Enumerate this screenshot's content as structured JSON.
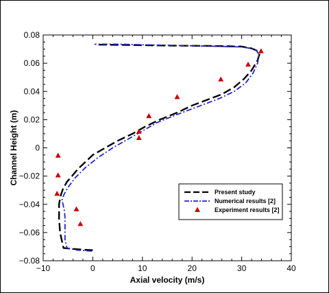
{
  "chart_data": {
    "type": "line",
    "title": "",
    "xlabel": "Axial velocity (m/s)",
    "ylabel": "Channel Height (m)",
    "xlim": [
      -10,
      40
    ],
    "ylim": [
      -0.08,
      0.08
    ],
    "xticks": [
      -10,
      0,
      10,
      20,
      30,
      40
    ],
    "yticks": [
      -0.08,
      -0.06,
      -0.04,
      -0.02,
      0,
      0.02,
      0.04,
      0.06,
      0.08
    ],
    "xtick_labels": [
      "−10",
      "0",
      "10",
      "20",
      "30",
      "40"
    ],
    "ytick_labels": [
      "−0.08",
      "−0.06",
      "−0.04",
      "−0.02",
      "0",
      "0.02",
      "0.04",
      "0.06",
      "0.08"
    ],
    "grid": false,
    "legend_position": "bottom-right",
    "series": [
      {
        "name": "Present study",
        "style": "long-dash",
        "color": "#000000",
        "x": [
          0.0,
          -2.0,
          -5.9,
          -6.6,
          -6.8,
          -6.8,
          -6.6,
          -6.4,
          -6.0,
          -5.2,
          -4.2,
          -3.0,
          -1.5,
          0.0,
          2.5,
          5.0,
          8.0,
          10.5,
          13.5,
          17.0,
          20.0,
          23.0,
          26.0,
          28.5,
          30.5,
          32.0,
          33.2,
          33.6,
          33.0,
          32.0,
          30.0,
          25.0,
          15.0,
          5.0,
          0.4
        ],
        "y": [
          -0.0725,
          -0.0722,
          -0.071,
          -0.06,
          -0.05,
          -0.04,
          -0.036,
          -0.033,
          -0.029,
          -0.024,
          -0.02,
          -0.015,
          -0.01,
          -0.005,
          0.0,
          0.005,
          0.01,
          0.015,
          0.02,
          0.025,
          0.03,
          0.034,
          0.038,
          0.043,
          0.049,
          0.055,
          0.062,
          0.0665,
          0.069,
          0.0705,
          0.0718,
          0.0722,
          0.0725,
          0.073,
          0.0732
        ]
      },
      {
        "name": "Numerical results [2]",
        "style": "dash-dot",
        "color": "#2222cc",
        "x": [
          -0.2,
          -3.0,
          -5.2,
          -5.6,
          -5.6,
          -5.7,
          -6.0,
          -6.2,
          -5.8,
          -5.0,
          -3.5,
          -1.5,
          1.0,
          4.0,
          7.0,
          10.0,
          13.0,
          16.5,
          19.5,
          22.5,
          25.5,
          28.5,
          30.8,
          32.3,
          33.2,
          33.5,
          33.0,
          32.0,
          30.0,
          25.0,
          15.0,
          5.0,
          0.4
        ],
        "y": [
          -0.0732,
          -0.0725,
          -0.071,
          -0.065,
          -0.05,
          -0.045,
          -0.04,
          -0.037,
          -0.033,
          -0.028,
          -0.021,
          -0.014,
          -0.007,
          0.0,
          0.006,
          0.012,
          0.018,
          0.023,
          0.027,
          0.031,
          0.035,
          0.04,
          0.046,
          0.053,
          0.06,
          0.066,
          0.069,
          0.0705,
          0.0715,
          0.072,
          0.0727,
          0.0735,
          0.0735
        ]
      },
      {
        "name": "Experiment results [2]",
        "style": "triangle-markers",
        "color": "#cc0000",
        "x": [
          -7.0,
          -7.0,
          -7.2,
          -3.3,
          -2.5,
          9.3,
          9.3,
          11.3,
          17.0,
          25.8,
          31.3,
          33.9
        ],
        "y": [
          -0.0055,
          -0.0195,
          -0.0325,
          -0.0435,
          -0.054,
          0.007,
          0.0115,
          0.0225,
          0.036,
          0.0485,
          0.059,
          0.0685
        ]
      }
    ]
  }
}
